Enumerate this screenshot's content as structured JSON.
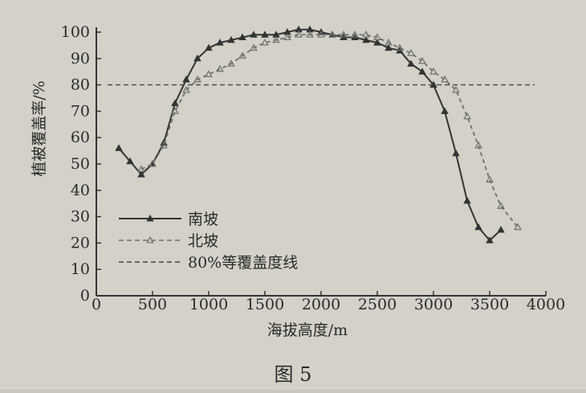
{
  "chart_data": {
    "type": "line",
    "caption": "图 5",
    "xlabel": "海拔高度/m",
    "ylabel": "植被覆盖率/%",
    "xlim": [
      0,
      4000
    ],
    "ylim": [
      0,
      100
    ],
    "x_ticks": [
      "0",
      "500",
      "1000",
      "1500",
      "2000",
      "2500",
      "3000",
      "3500",
      "4000"
    ],
    "y_ticks": [
      "0",
      "10",
      "20",
      "30",
      "40",
      "50",
      "60",
      "70",
      "80",
      "90",
      "100"
    ],
    "grid": false,
    "legend_position": "lower-left",
    "series": [
      {
        "name": "南坡",
        "style": "solid-triangle",
        "color": "#333333",
        "points": [
          [
            200,
            56
          ],
          [
            300,
            51
          ],
          [
            400,
            46
          ],
          [
            500,
            50
          ],
          [
            600,
            58
          ],
          [
            700,
            73
          ],
          [
            800,
            82
          ],
          [
            900,
            90
          ],
          [
            1000,
            94
          ],
          [
            1100,
            96
          ],
          [
            1200,
            97
          ],
          [
            1300,
            98
          ],
          [
            1400,
            99
          ],
          [
            1500,
            99
          ],
          [
            1600,
            99
          ],
          [
            1700,
            100
          ],
          [
            1800,
            101
          ],
          [
            1900,
            101
          ],
          [
            2000,
            100
          ],
          [
            2100,
            99
          ],
          [
            2200,
            98
          ],
          [
            2300,
            98
          ],
          [
            2400,
            97
          ],
          [
            2500,
            96
          ],
          [
            2600,
            94
          ],
          [
            2700,
            93
          ],
          [
            2800,
            88
          ],
          [
            2900,
            85
          ],
          [
            3000,
            80
          ],
          [
            3100,
            70
          ],
          [
            3200,
            54
          ],
          [
            3300,
            36
          ],
          [
            3400,
            26
          ],
          [
            3500,
            21
          ],
          [
            3600,
            25
          ]
        ]
      },
      {
        "name": "北坡",
        "style": "dashed-triangle",
        "color": "#6f6f6f",
        "points": [
          [
            400,
            48
          ],
          [
            500,
            50
          ],
          [
            600,
            57
          ],
          [
            700,
            70
          ],
          [
            800,
            78
          ],
          [
            900,
            82
          ],
          [
            1000,
            84
          ],
          [
            1100,
            86
          ],
          [
            1200,
            88
          ],
          [
            1300,
            91
          ],
          [
            1400,
            94
          ],
          [
            1500,
            96
          ],
          [
            1600,
            97
          ],
          [
            1700,
            98
          ],
          [
            1800,
            99
          ],
          [
            1900,
            99
          ],
          [
            2000,
            99
          ],
          [
            2100,
            99
          ],
          [
            2200,
            99
          ],
          [
            2300,
            99
          ],
          [
            2400,
            99
          ],
          [
            2500,
            98
          ],
          [
            2600,
            96
          ],
          [
            2700,
            94
          ],
          [
            2800,
            92
          ],
          [
            2900,
            89
          ],
          [
            3000,
            85
          ],
          [
            3100,
            82
          ],
          [
            3200,
            78
          ],
          [
            3300,
            68
          ],
          [
            3400,
            57
          ],
          [
            3500,
            44
          ],
          [
            3600,
            34
          ],
          [
            3750,
            26
          ]
        ]
      },
      {
        "name": "80%等覆盖度线",
        "style": "dashed",
        "color": "#444444",
        "points": [
          [
            100,
            80
          ],
          [
            3900,
            80
          ]
        ]
      }
    ]
  }
}
